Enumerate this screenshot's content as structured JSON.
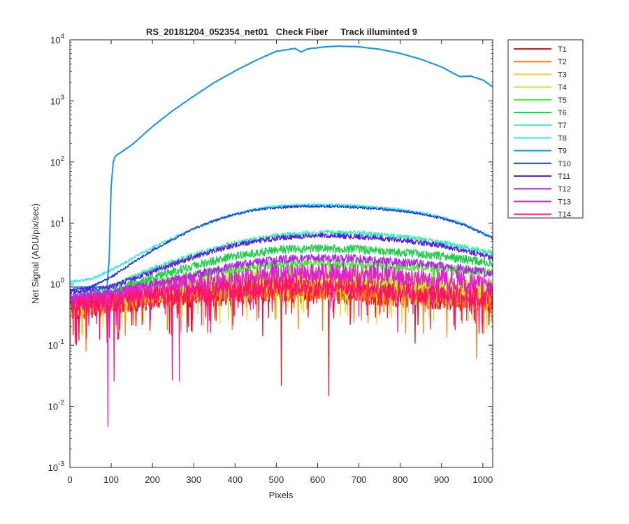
{
  "chart_data": {
    "type": "line",
    "title": "RS_20181204_052354_net01   Check Fiber     Track illuminted 9",
    "xlabel": "Pixels",
    "ylabel": "Net Signal (ADU/pix/sec)",
    "xlim": [
      0,
      1024
    ],
    "ylim": [
      0.001,
      10000
    ],
    "yscale": "log",
    "grid": false,
    "legend_position": "outside-right",
    "x_ticks": [
      0,
      100,
      200,
      300,
      400,
      500,
      600,
      700,
      800,
      900,
      1000
    ],
    "x_tick_labels": [
      "0",
      "100",
      "200",
      "300",
      "400",
      "500",
      "600",
      "700",
      "800",
      "900",
      "1000"
    ],
    "y_ticks": [
      0.001,
      0.01,
      0.1,
      1,
      10,
      100,
      1000,
      10000
    ],
    "y_tick_exponents": [
      "-3",
      "-2",
      "-1",
      "0",
      "1",
      "2",
      "3",
      "4"
    ],
    "y_tick_base": "10",
    "series": [
      {
        "name": "T1",
        "color": "#e8141b",
        "points": [
          [
            0,
            0.35
          ],
          [
            100,
            0.45
          ],
          [
            200,
            0.55
          ],
          [
            300,
            0.6
          ],
          [
            400,
            0.65
          ],
          [
            500,
            0.7
          ],
          [
            600,
            0.7
          ],
          [
            700,
            0.65
          ],
          [
            800,
            0.6
          ],
          [
            900,
            0.55
          ],
          [
            1000,
            0.5
          ],
          [
            1024,
            0.5
          ]
        ],
        "dips": [
          [
            512,
            0.022
          ],
          [
            627,
            0.015
          ]
        ]
      },
      {
        "name": "T2",
        "color": "#ff7a14",
        "points": [
          [
            0,
            0.4
          ],
          [
            100,
            0.5
          ],
          [
            200,
            0.6
          ],
          [
            300,
            0.7
          ],
          [
            400,
            0.75
          ],
          [
            500,
            0.8
          ],
          [
            600,
            0.8
          ],
          [
            700,
            0.75
          ],
          [
            800,
            0.7
          ],
          [
            900,
            0.6
          ],
          [
            1000,
            0.55
          ],
          [
            1024,
            0.5
          ]
        ],
        "dips": [
          [
            985,
            0.06
          ]
        ]
      },
      {
        "name": "T3",
        "color": "#ffcf14",
        "points": [
          [
            0,
            0.4
          ],
          [
            100,
            0.55
          ],
          [
            200,
            0.7
          ],
          [
            300,
            0.85
          ],
          [
            400,
            1.0
          ],
          [
            500,
            1.05
          ],
          [
            600,
            1.05
          ],
          [
            700,
            1.0
          ],
          [
            800,
            0.9
          ],
          [
            900,
            0.8
          ],
          [
            1000,
            0.7
          ],
          [
            1024,
            0.65
          ]
        ],
        "dips": [
          [
            80,
            0.2
          ]
        ]
      },
      {
        "name": "T4",
        "color": "#b8f014",
        "points": [
          [
            0,
            0.45
          ],
          [
            100,
            0.6
          ],
          [
            200,
            0.8
          ],
          [
            300,
            1.0
          ],
          [
            400,
            1.15
          ],
          [
            500,
            1.3
          ],
          [
            600,
            1.3
          ],
          [
            700,
            1.25
          ],
          [
            800,
            1.1
          ],
          [
            900,
            1.0
          ],
          [
            1000,
            0.9
          ],
          [
            1024,
            0.85
          ]
        ],
        "dips": []
      },
      {
        "name": "T5",
        "color": "#3ef026",
        "points": [
          [
            0,
            0.5
          ],
          [
            100,
            0.7
          ],
          [
            200,
            1.0
          ],
          [
            300,
            1.4
          ],
          [
            400,
            1.8
          ],
          [
            500,
            2.1
          ],
          [
            600,
            2.2
          ],
          [
            700,
            2.1
          ],
          [
            800,
            1.95
          ],
          [
            900,
            1.8
          ],
          [
            1000,
            1.6
          ],
          [
            1024,
            1.55
          ]
        ],
        "dips": []
      },
      {
        "name": "T6",
        "color": "#20d04a",
        "points": [
          [
            0,
            0.55
          ],
          [
            100,
            0.75
          ],
          [
            200,
            1.3
          ],
          [
            300,
            2.0
          ],
          [
            400,
            2.9
          ],
          [
            500,
            3.6
          ],
          [
            600,
            3.9
          ],
          [
            700,
            3.7
          ],
          [
            800,
            3.3
          ],
          [
            900,
            2.9
          ],
          [
            1000,
            2.3
          ],
          [
            1024,
            2.2
          ]
        ],
        "dips": []
      },
      {
        "name": "T7",
        "color": "#38f0b4",
        "points": [
          [
            0,
            0.65
          ],
          [
            100,
            0.9
          ],
          [
            200,
            1.8
          ],
          [
            300,
            3.0
          ],
          [
            400,
            4.7
          ],
          [
            500,
            6.2
          ],
          [
            600,
            7.0
          ],
          [
            700,
            6.8
          ],
          [
            800,
            6.0
          ],
          [
            900,
            4.8
          ],
          [
            1000,
            3.5
          ],
          [
            1024,
            3.2
          ]
        ],
        "dips": []
      },
      {
        "name": "T8",
        "color": "#22f0f0",
        "points": [
          [
            0,
            1.1
          ],
          [
            50,
            1.2
          ],
          [
            100,
            1.7
          ],
          [
            150,
            2.6
          ],
          [
            200,
            4.0
          ],
          [
            250,
            5.8
          ],
          [
            300,
            8.0
          ],
          [
            350,
            11.0
          ],
          [
            400,
            14.0
          ],
          [
            450,
            17.0
          ],
          [
            500,
            19.0
          ],
          [
            550,
            19.8
          ],
          [
            600,
            20.0
          ],
          [
            650,
            19.8
          ],
          [
            700,
            19.0
          ],
          [
            750,
            18.0
          ],
          [
            800,
            16.5
          ],
          [
            850,
            14.8
          ],
          [
            900,
            12.5
          ],
          [
            950,
            10.0
          ],
          [
            1000,
            6.8
          ],
          [
            1024,
            5.8
          ]
        ],
        "dips": []
      },
      {
        "name": "T9",
        "color": "#1a96e8",
        "points": [
          [
            0,
            0.9
          ],
          [
            50,
            0.9
          ],
          [
            90,
            0.9
          ],
          [
            95,
            2.5
          ],
          [
            100,
            40
          ],
          [
            105,
            100
          ],
          [
            110,
            125
          ],
          [
            150,
            190
          ],
          [
            200,
            380
          ],
          [
            250,
            700
          ],
          [
            300,
            1200
          ],
          [
            350,
            2000
          ],
          [
            400,
            3100
          ],
          [
            450,
            4600
          ],
          [
            500,
            6500
          ],
          [
            545,
            7200
          ],
          [
            560,
            6300
          ],
          [
            575,
            7100
          ],
          [
            620,
            7700
          ],
          [
            650,
            7900
          ],
          [
            700,
            7700
          ],
          [
            750,
            7000
          ],
          [
            800,
            6000
          ],
          [
            850,
            4800
          ],
          [
            900,
            3600
          ],
          [
            930,
            2800
          ],
          [
            945,
            2500
          ],
          [
            970,
            2550
          ],
          [
            1000,
            2200
          ],
          [
            1024,
            1700
          ]
        ],
        "dips": []
      },
      {
        "name": "T10",
        "color": "#1e3cdc",
        "points": [
          [
            0,
            0.8
          ],
          [
            50,
            0.9
          ],
          [
            100,
            1.3
          ],
          [
            150,
            2.2
          ],
          [
            200,
            3.6
          ],
          [
            250,
            5.4
          ],
          [
            300,
            8.0
          ],
          [
            350,
            11.0
          ],
          [
            400,
            14.0
          ],
          [
            450,
            16.5
          ],
          [
            500,
            18.0
          ],
          [
            550,
            18.6
          ],
          [
            600,
            18.8
          ],
          [
            650,
            18.6
          ],
          [
            700,
            18.0
          ],
          [
            750,
            17.0
          ],
          [
            800,
            15.8
          ],
          [
            850,
            14.2
          ],
          [
            900,
            12.0
          ],
          [
            950,
            9.6
          ],
          [
            1000,
            6.8
          ],
          [
            1024,
            5.6
          ]
        ],
        "dips": []
      },
      {
        "name": "T11",
        "color": "#5a1ee6",
        "points": [
          [
            0,
            0.75
          ],
          [
            100,
            0.9
          ],
          [
            200,
            1.6
          ],
          [
            300,
            2.8
          ],
          [
            400,
            4.4
          ],
          [
            500,
            5.7
          ],
          [
            600,
            6.3
          ],
          [
            700,
            6.0
          ],
          [
            800,
            5.3
          ],
          [
            900,
            4.3
          ],
          [
            1000,
            3.0
          ],
          [
            1024,
            2.6
          ]
        ],
        "dips": []
      },
      {
        "name": "T12",
        "color": "#b424e8",
        "points": [
          [
            0,
            0.6
          ],
          [
            100,
            0.7
          ],
          [
            200,
            1.0
          ],
          [
            300,
            1.4
          ],
          [
            400,
            2.0
          ],
          [
            500,
            2.5
          ],
          [
            600,
            2.7
          ],
          [
            700,
            2.6
          ],
          [
            800,
            2.3
          ],
          [
            900,
            2.0
          ],
          [
            1000,
            1.6
          ],
          [
            1024,
            1.5
          ]
        ],
        "dips": []
      },
      {
        "name": "T13",
        "color": "#e61ed2",
        "points": [
          [
            0,
            0.5
          ],
          [
            100,
            0.6
          ],
          [
            200,
            0.8
          ],
          [
            300,
            1.0
          ],
          [
            400,
            1.2
          ],
          [
            500,
            1.4
          ],
          [
            600,
            1.5
          ],
          [
            700,
            1.45
          ],
          [
            800,
            1.35
          ],
          [
            900,
            1.2
          ],
          [
            1000,
            1.0
          ],
          [
            1024,
            0.95
          ]
        ],
        "dips": [
          [
            92,
            0.0047
          ],
          [
            265,
            0.026
          ]
        ]
      },
      {
        "name": "T14",
        "color": "#ff1464",
        "points": [
          [
            0,
            0.45
          ],
          [
            100,
            0.5
          ],
          [
            200,
            0.6
          ],
          [
            300,
            0.7
          ],
          [
            400,
            0.8
          ],
          [
            500,
            0.9
          ],
          [
            600,
            0.9
          ],
          [
            700,
            0.85
          ],
          [
            800,
            0.75
          ],
          [
            900,
            0.65
          ],
          [
            1000,
            0.6
          ],
          [
            1024,
            0.55
          ]
        ],
        "dips": [
          [
            107,
            0.026
          ],
          [
            248,
            0.027
          ]
        ]
      }
    ]
  }
}
